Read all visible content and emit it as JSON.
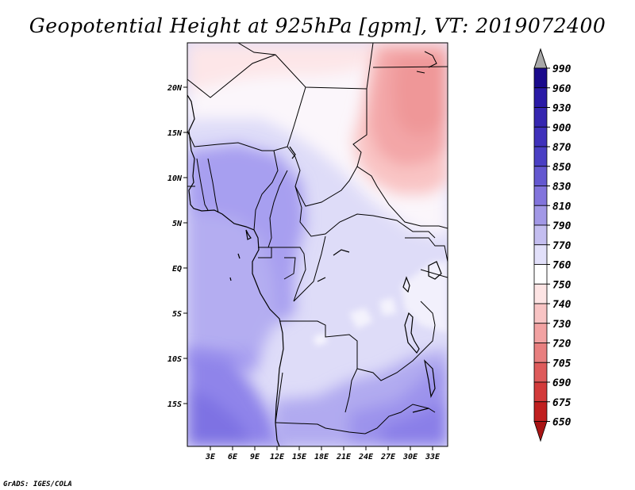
{
  "title": "Geopotential Height at 925hPa [gpm], VT: 2019072400",
  "credit": "GrADS: IGES/COLA",
  "map": {
    "lat_labels": [
      "20N",
      "15N",
      "10N",
      "5N",
      "EQ",
      "5S",
      "10S",
      "15S"
    ],
    "lon_labels": [
      "3E",
      "6E",
      "9E",
      "12E",
      "15E",
      "18E",
      "21E",
      "24E",
      "27E",
      "30E",
      "33E"
    ]
  },
  "colorbar": {
    "levels": [
      "990",
      "960",
      "930",
      "900",
      "870",
      "850",
      "830",
      "810",
      "790",
      "770",
      "760",
      "750",
      "740",
      "730",
      "720",
      "705",
      "690",
      "675",
      "650"
    ],
    "colors": [
      "#1a0a8c",
      "#2a1aa6",
      "#3526b0",
      "#3f31bb",
      "#4a3fc4",
      "#6458d0",
      "#8274dc",
      "#a298e6",
      "#c4bef0",
      "#e2e0fa",
      "#ffffff",
      "#fde4e4",
      "#f8c4c4",
      "#f2a2a2",
      "#e87f7f",
      "#de5b5b",
      "#d23a3a",
      "#c01f1f",
      "#a81414"
    ],
    "over_color": "#a8a8a8"
  }
}
